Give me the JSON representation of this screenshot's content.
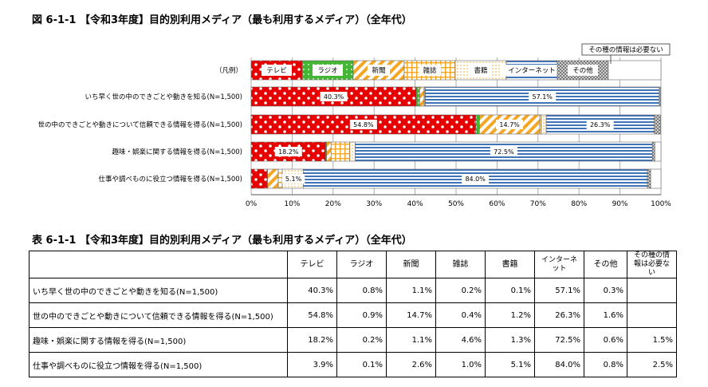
{
  "figure_title": "図 6-1-1 【令和3年度】目的別利用メディア（最も利用するメディア）（全年代）",
  "table_title": "表 6-1-1 【令和3年度】目的別利用メディア（最も利用するメディア）（全年代）",
  "chart_data": {
    "type": "bar",
    "orientation": "horizontal-stacked-100",
    "legend_label": "（凡例）",
    "categories": [
      "いち早く世の中のできごとや動きを知る(N=1,500)",
      "世の中のできごとや動きについて信頼できる情報を得る(N=1,500)",
      "趣味・娯楽に関する情報を得る(N=1,500)",
      "仕事や調べものに役立つ情報を得る(N=1,500)"
    ],
    "series": [
      {
        "name": "テレビ",
        "values": [
          40.3,
          54.8,
          18.2,
          3.9
        ],
        "color": "#e60000"
      },
      {
        "name": "ラジオ",
        "values": [
          0.8,
          0.9,
          0.2,
          0.1
        ],
        "color": "#44b535"
      },
      {
        "name": "新聞",
        "values": [
          1.1,
          14.7,
          1.1,
          2.6
        ],
        "color": "#f5a623"
      },
      {
        "name": "雑誌",
        "values": [
          0.2,
          0.4,
          4.6,
          1.0
        ],
        "color": "#f5a623"
      },
      {
        "name": "書籍",
        "values": [
          0.1,
          1.2,
          1.3,
          5.1
        ],
        "color": "#f5a623"
      },
      {
        "name": "インターネット",
        "values": [
          57.1,
          26.3,
          72.5,
          84.0
        ],
        "color": "#3f73b8"
      },
      {
        "name": "その他",
        "values": [
          0.3,
          1.6,
          0.6,
          0.8
        ],
        "color": "#999999"
      },
      {
        "name": "その種の情報は必要ない",
        "values": [
          0,
          0,
          1.5,
          2.5
        ],
        "color": "#ffffff"
      }
    ],
    "data_labels": [
      {
        "row": 0,
        "series": 0,
        "text": "40.3%"
      },
      {
        "row": 0,
        "series": 5,
        "text": "57.1%"
      },
      {
        "row": 1,
        "series": 0,
        "text": "54.8%"
      },
      {
        "row": 1,
        "series": 2,
        "text": "14.7%"
      },
      {
        "row": 1,
        "series": 5,
        "text": "26.3%"
      },
      {
        "row": 2,
        "series": 0,
        "text": "18.2%"
      },
      {
        "row": 2,
        "series": 5,
        "text": "72.5%"
      },
      {
        "row": 3,
        "series": 4,
        "text": "5.1%"
      },
      {
        "row": 3,
        "series": 5,
        "text": "84.0%"
      }
    ],
    "xticks": [
      "0%",
      "10%",
      "20%",
      "30%",
      "40%",
      "50%",
      "60%",
      "70%",
      "80%",
      "90%",
      "100%"
    ],
    "xlim": [
      0,
      100
    ],
    "grid": true
  },
  "table": {
    "headers": [
      "テレビ",
      "ラジオ",
      "新聞",
      "雑誌",
      "書籍",
      "インターネット",
      "その他",
      "その種の情報は必要ない"
    ],
    "rows": [
      {
        "label": "いち早く世の中のできごとや動きを知る(N=1,500)",
        "cells": [
          "40.3%",
          "0.8%",
          "1.1%",
          "0.2%",
          "0.1%",
          "57.1%",
          "0.3%",
          ""
        ]
      },
      {
        "label": "世の中のできごとや動きについて信頼できる情報を得る(N=1,500)",
        "cells": [
          "54.8%",
          "0.9%",
          "14.7%",
          "0.4%",
          "1.2%",
          "26.3%",
          "1.6%",
          ""
        ]
      },
      {
        "label": "趣味・娯楽に関する情報を得る(N=1,500)",
        "cells": [
          "18.2%",
          "0.2%",
          "1.1%",
          "4.6%",
          "1.3%",
          "72.5%",
          "0.6%",
          "1.5%"
        ]
      },
      {
        "label": "仕事や調べものに役立つ情報を得る(N=1,500)",
        "cells": [
          "3.9%",
          "0.1%",
          "2.6%",
          "1.0%",
          "5.1%",
          "84.0%",
          "0.8%",
          "2.5%"
        ]
      }
    ]
  }
}
